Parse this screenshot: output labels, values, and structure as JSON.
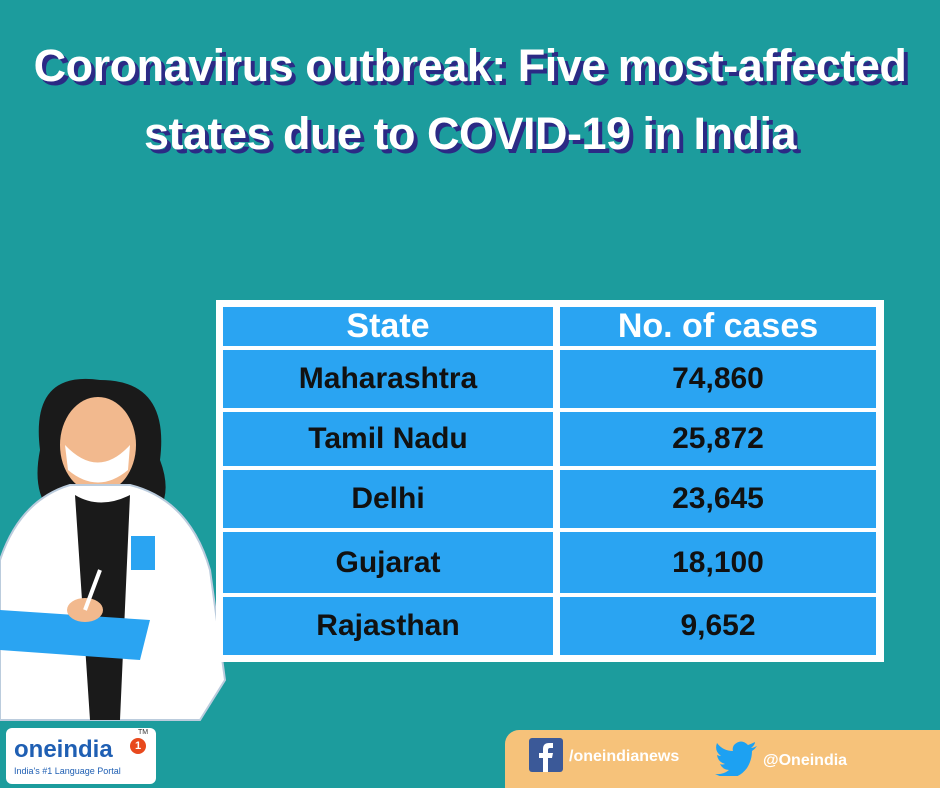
{
  "title": "Coronavirus outbreak: Five most-affected states due to COVID-19 in India",
  "table": {
    "header": [
      "State",
      "No. of cases"
    ],
    "rows": [
      [
        "Maharashtra",
        "74,860"
      ],
      [
        "Tamil Nadu",
        "25,872"
      ],
      [
        "Delhi",
        "23,645"
      ],
      [
        "Gujarat",
        "18,100"
      ],
      [
        "Rajasthan",
        "9,652"
      ]
    ]
  },
  "footer": {
    "logo": "oneindia",
    "badge": "1",
    "trademark": "TM",
    "tagline": "India's #1 Language Portal",
    "facebook": "/oneindianews",
    "twitter": "@Oneindia"
  }
}
